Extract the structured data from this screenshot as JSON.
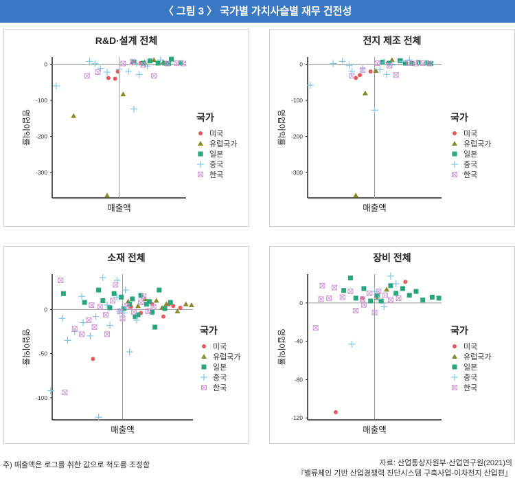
{
  "header": {
    "title": "〈 그림 3 〉 국가별 가치사슬별 재무 건전성"
  },
  "footer": {
    "note": "주) 매출액은 로그를 취한 값으로 척도를 조정함",
    "source_line1": "자료: 산업통상자원부·산업연구원(2021)의",
    "source_line2": "『밸류체인 기반 산업경쟁력 진단시스템 구축사업-이차전지 산업편』"
  },
  "colors": {
    "미국": "#e8595c",
    "유럽국가": "#8a8a2a",
    "일본": "#2aa67c",
    "중국": "#7fc6e6",
    "한국": "#d09ad8"
  },
  "legend": {
    "title": "국가",
    "items": [
      "미국",
      "유럽국가",
      "일본",
      "중국",
      "한국"
    ]
  },
  "chart_data": [
    {
      "type": "scatter",
      "title": "R&D·설계 전체",
      "xlabel": "매출액",
      "ylabel": "영업이익률",
      "yticks": [
        0,
        -100,
        -200,
        -300
      ],
      "ylim": [
        -370,
        20
      ],
      "xlim": [
        0,
        10
      ],
      "series": [
        {
          "name": "미국",
          "points": [
            [
              4.2,
              -38
            ],
            [
              4.7,
              -40
            ],
            [
              4.9,
              -20
            ],
            [
              6.0,
              3
            ],
            [
              6.6,
              3
            ]
          ]
        },
        {
          "name": "유럽국가",
          "points": [
            [
              1.6,
              -143
            ],
            [
              4.1,
              -363
            ],
            [
              5.3,
              -83
            ],
            [
              6.9,
              5
            ],
            [
              7.6,
              12
            ],
            [
              8.3,
              6
            ]
          ]
        },
        {
          "name": "일본",
          "points": [
            [
              6.1,
              6
            ],
            [
              6.8,
              3
            ],
            [
              7.3,
              9
            ],
            [
              7.9,
              3
            ],
            [
              8.4,
              3
            ],
            [
              8.9,
              14
            ],
            [
              9.6,
              4
            ],
            [
              8.7,
              2
            ]
          ]
        },
        {
          "name": "중국",
          "points": [
            [
              0.3,
              -60
            ],
            [
              2.8,
              8
            ],
            [
              3.2,
              2
            ],
            [
              3.6,
              -12
            ],
            [
              4.1,
              -22
            ],
            [
              5.0,
              -14
            ],
            [
              6.1,
              -124
            ],
            [
              5.7,
              -20
            ],
            [
              6.3,
              2
            ],
            [
              7.1,
              -5
            ],
            [
              8.1,
              12
            ],
            [
              6.5,
              -28
            ]
          ]
        },
        {
          "name": "한국",
          "points": [
            [
              2.6,
              -32
            ],
            [
              3.4,
              -22
            ],
            [
              5.3,
              2
            ],
            [
              6.0,
              7
            ],
            [
              6.8,
              -2
            ],
            [
              7.6,
              -32
            ],
            [
              8.6,
              2
            ],
            [
              9.3,
              3
            ],
            [
              9.8,
              2
            ]
          ]
        }
      ]
    },
    {
      "type": "scatter",
      "title": "전지 제조 전체",
      "xlabel": "매출액",
      "ylabel": "영업이익률",
      "yticks": [
        0,
        -100,
        -200,
        -300
      ],
      "ylim": [
        -370,
        20
      ],
      "xlim": [
        0,
        10
      ],
      "series": [
        {
          "name": "미국",
          "points": [
            [
              3.6,
              -38
            ],
            [
              3.9,
              -30
            ],
            [
              4.7,
              -20
            ],
            [
              6.0,
              4
            ]
          ]
        },
        {
          "name": "유럽국가",
          "points": [
            [
              3.6,
              -363
            ],
            [
              4.3,
              -80
            ],
            [
              6.3,
              12
            ],
            [
              7.3,
              4
            ],
            [
              5.1,
              -18
            ]
          ]
        },
        {
          "name": "일본",
          "points": [
            [
              5.6,
              6
            ],
            [
              6.1,
              3
            ],
            [
              6.9,
              10
            ],
            [
              7.3,
              3
            ],
            [
              7.8,
              2
            ],
            [
              8.3,
              5
            ],
            [
              9.2,
              2
            ],
            [
              8.9,
              4
            ]
          ]
        },
        {
          "name": "중국",
          "points": [
            [
              0.2,
              -58
            ],
            [
              1.9,
              2
            ],
            [
              2.6,
              8
            ],
            [
              3.1,
              -4
            ],
            [
              3.3,
              -20
            ],
            [
              4.1,
              -12
            ],
            [
              5.0,
              -127
            ],
            [
              5.4,
              -15
            ],
            [
              5.7,
              6
            ],
            [
              6.3,
              -2
            ],
            [
              7.1,
              8
            ],
            [
              7.6,
              12
            ],
            [
              5.9,
              -28
            ]
          ]
        },
        {
          "name": "한국",
          "points": [
            [
              3.3,
              -32
            ],
            [
              4.1,
              -16
            ],
            [
              5.2,
              3
            ],
            [
              6.1,
              -4
            ],
            [
              6.6,
              -30
            ],
            [
              7.6,
              3
            ],
            [
              8.1,
              2
            ],
            [
              8.6,
              3
            ],
            [
              9.1,
              2
            ]
          ]
        }
      ]
    },
    {
      "type": "scatter",
      "title": "소재 전체",
      "xlabel": "매출액",
      "ylabel": "영업이익률",
      "yticks": [
        0,
        -50,
        -100
      ],
      "ylim": [
        -125,
        40
      ],
      "xlim": [
        0,
        10
      ],
      "series": [
        {
          "name": "미국",
          "points": [
            [
              2.9,
              -56
            ],
            [
              7.9,
              -8
            ],
            [
              8.6,
              4
            ],
            [
              9.1,
              2
            ],
            [
              7.1,
              6
            ],
            [
              6.3,
              -4
            ],
            [
              5.6,
              3
            ],
            [
              8.3,
              6
            ]
          ]
        },
        {
          "name": "유럽국가",
          "points": [
            [
              6.1,
              4
            ],
            [
              6.6,
              12
            ],
            [
              7.4,
              10
            ],
            [
              8.1,
              6
            ],
            [
              8.9,
              -2
            ],
            [
              9.5,
              6
            ],
            [
              9.9,
              5
            ],
            [
              5.4,
              9
            ],
            [
              7.8,
              2
            ]
          ]
        },
        {
          "name": "일본",
          "points": [
            [
              0.8,
              18
            ],
            [
              2.3,
              8
            ],
            [
              3.3,
              22
            ],
            [
              4.1,
              2
            ],
            [
              4.9,
              14
            ],
            [
              5.5,
              6
            ],
            [
              5.9,
              -8
            ],
            [
              6.3,
              16
            ],
            [
              6.7,
              6
            ],
            [
              7.1,
              -3
            ],
            [
              7.6,
              22
            ],
            [
              8.0,
              1
            ],
            [
              8.4,
              8
            ],
            [
              7.3,
              -20
            ],
            [
              5.1,
              1
            ],
            [
              4.4,
              18
            ],
            [
              6.1,
              -6
            ],
            [
              3.6,
              10
            ],
            [
              6.9,
              9
            ],
            [
              5.7,
              12
            ]
          ]
        },
        {
          "name": "중국",
          "points": [
            [
              -0.1,
              -92
            ],
            [
              0.7,
              -10
            ],
            [
              1.1,
              -35
            ],
            [
              1.6,
              -25
            ],
            [
              2.1,
              15
            ],
            [
              2.7,
              -30
            ],
            [
              3.1,
              -8
            ],
            [
              3.6,
              36
            ],
            [
              4.1,
              -18
            ],
            [
              4.6,
              14
            ],
            [
              5.1,
              -4
            ],
            [
              5.5,
              -48
            ],
            [
              4.6,
              33
            ],
            [
              3.9,
              5
            ],
            [
              3.3,
              -122
            ],
            [
              2.2,
              -15
            ],
            [
              5.2,
              22
            ],
            [
              6.0,
              -12
            ],
            [
              4.8,
              -2
            ]
          ]
        },
        {
          "name": "한국",
          "points": [
            [
              0.6,
              33
            ],
            [
              1.6,
              -22
            ],
            [
              2.1,
              -28
            ],
            [
              2.6,
              -12
            ],
            [
              3.0,
              -20
            ],
            [
              3.4,
              3
            ],
            [
              3.8,
              -6
            ],
            [
              4.3,
              10
            ],
            [
              4.8,
              -2
            ],
            [
              5.3,
              4
            ],
            [
              5.8,
              -3
            ],
            [
              6.3,
              8
            ],
            [
              6.8,
              -2
            ],
            [
              7.2,
              3
            ],
            [
              0.9,
              -94
            ],
            [
              3.9,
              -28
            ],
            [
              4.5,
              28
            ],
            [
              6.5,
              15
            ],
            [
              2.8,
              5
            ],
            [
              5.0,
              -10
            ]
          ]
        }
      ]
    },
    {
      "type": "scatter",
      "title": "장비 전체",
      "xlabel": "매출액",
      "ylabel": "영업이익률",
      "yticks": [
        0,
        -40,
        -80,
        -120
      ],
      "ylim": [
        -122,
        30
      ],
      "xlim": [
        0,
        10
      ],
      "series": [
        {
          "name": "미국",
          "points": [
            [
              2.1,
              -114
            ],
            [
              7.3,
              22
            ],
            [
              4.1,
              5
            ]
          ]
        },
        {
          "name": "유럽국가",
          "points": [
            [
              5.9,
              14
            ],
            [
              5.2,
              5
            ]
          ]
        },
        {
          "name": "일본",
          "points": [
            [
              2.7,
              13
            ],
            [
              3.2,
              26
            ],
            [
              3.6,
              5
            ],
            [
              4.2,
              15
            ],
            [
              4.7,
              2
            ],
            [
              5.2,
              8
            ],
            [
              5.5,
              2
            ],
            [
              6.2,
              18
            ],
            [
              6.6,
              10
            ],
            [
              7.1,
              15
            ],
            [
              7.6,
              8
            ],
            [
              8.1,
              12
            ],
            [
              8.6,
              3
            ],
            [
              9.3,
              6
            ],
            [
              9.8,
              5
            ]
          ]
        },
        {
          "name": "중국",
          "points": [
            [
              3.3,
              -43
            ],
            [
              5.3,
              4
            ],
            [
              5.7,
              -4
            ],
            [
              6.2,
              28
            ],
            [
              6.6,
              20
            ],
            [
              5.0,
              12
            ]
          ]
        },
        {
          "name": "한국",
          "points": [
            [
              0.6,
              -26
            ],
            [
              1.1,
              18
            ],
            [
              1.6,
              5
            ],
            [
              2.0,
              16
            ],
            [
              2.6,
              6
            ],
            [
              3.2,
              12
            ],
            [
              3.6,
              -8
            ],
            [
              4.1,
              4
            ],
            [
              4.6,
              10
            ],
            [
              5.0,
              -10
            ],
            [
              5.3,
              12
            ],
            [
              5.8,
              8
            ],
            [
              6.2,
              3
            ],
            [
              6.8,
              5
            ],
            [
              4.2,
              -2
            ],
            [
              1.0,
              4
            ]
          ]
        }
      ]
    }
  ]
}
